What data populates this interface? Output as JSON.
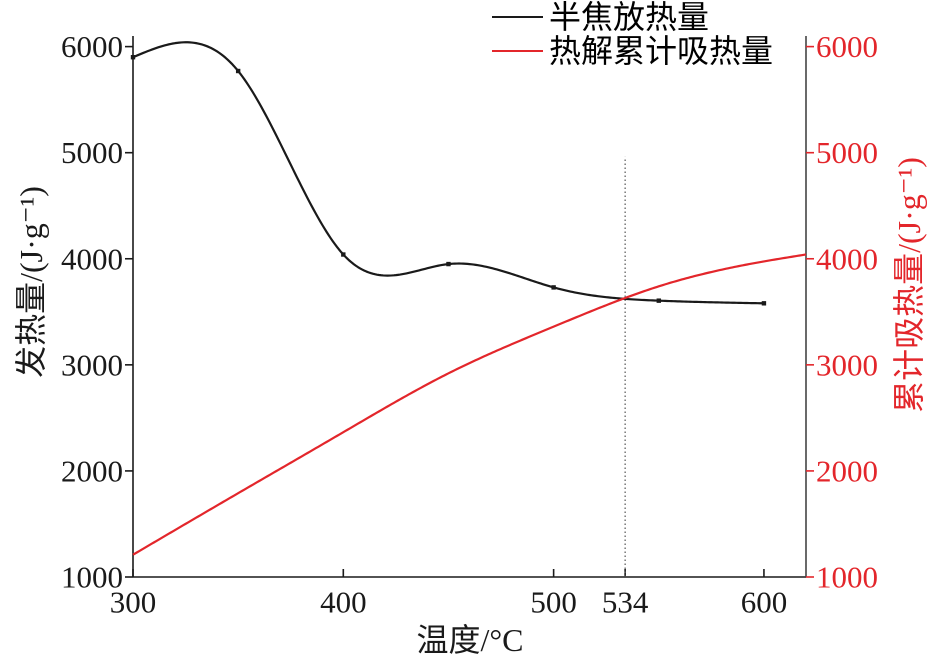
{
  "chart_data": {
    "type": "line",
    "xlabel": "温度/°C",
    "ylabel": "发热量/(J·g⁻¹)",
    "y2label": "累计吸热量/(J·g⁻¹)",
    "xlim": [
      300,
      620
    ],
    "ylim": [
      1000,
      6100
    ],
    "y2lim": [
      1000,
      6100
    ],
    "x_ticks": [
      300,
      400,
      500,
      534,
      600
    ],
    "y_ticks": [
      1000,
      2000,
      3000,
      4000,
      5000,
      6000
    ],
    "y2_ticks": [
      1000,
      2000,
      3000,
      4000,
      5000,
      6000
    ],
    "grid": false,
    "legend_position": "top-right",
    "series": [
      {
        "name": "半焦放热量",
        "secondary_y": false,
        "markers": true,
        "color": "#1a1a1a",
        "x": [
          300,
          350,
          400,
          450,
          500,
          550,
          600
        ],
        "y": [
          5900,
          5770,
          4040,
          3950,
          3730,
          3605,
          3580
        ]
      },
      {
        "name": "热解累计吸热量",
        "secondary_y": true,
        "markers": false,
        "color": "#e3262b",
        "x": [
          300,
          350,
          400,
          450,
          500,
          550,
          600,
          620
        ],
        "y": [
          1210,
          1790,
          2365,
          2920,
          3360,
          3740,
          3975,
          4040
        ]
      }
    ],
    "reference_line": {
      "x": 534,
      "y_top": 4960,
      "dotted": true
    }
  },
  "colors": {
    "left_axis": "#1a1a1a",
    "right_axis": "#e3262b",
    "reference_line": "#555555"
  }
}
